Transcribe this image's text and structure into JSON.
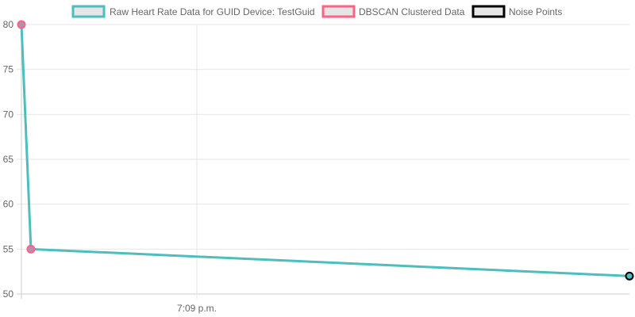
{
  "chart_data": {
    "type": "line",
    "x_tick_labels": [
      "7:09 p.m."
    ],
    "ylim": [
      50,
      80
    ],
    "y_ticks": [
      50,
      55,
      60,
      65,
      70,
      75,
      80
    ],
    "grid": true,
    "legend_placement": "top",
    "legend": [
      {
        "label": "Raw Heart Rate Data for GUID Device: TestGuid",
        "color": "#4dbdbd"
      },
      {
        "label": "DBSCAN Clustered Data",
        "color": "#ff6384"
      },
      {
        "label": "Noise Points",
        "color": "#000000"
      }
    ],
    "series": [
      {
        "name": "Raw Heart Rate Data for GUID Device: TestGuid",
        "values": [
          80,
          55,
          52
        ]
      },
      {
        "name": "DBSCAN Clustered Data",
        "values": [
          80,
          55
        ]
      },
      {
        "name": "Noise Points",
        "values": [
          52
        ]
      }
    ]
  }
}
